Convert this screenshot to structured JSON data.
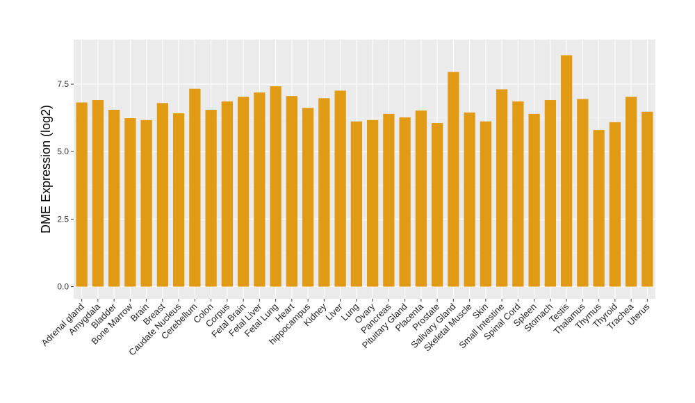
{
  "chart_data": {
    "type": "bar",
    "title": "",
    "xlabel": "",
    "ylabel": "DME Expression (log2)",
    "ylim": [
      -0.45,
      9.15
    ],
    "yticks": [
      0.0,
      2.5,
      5.0,
      7.5
    ],
    "ytick_labels": [
      "0.0",
      "2.5",
      "5.0",
      "7.5"
    ],
    "grid": true,
    "bar_color": "#E09A14",
    "panel_color": "#EBEBEB",
    "categories": [
      "Adrenal gland",
      "Amygdala",
      "Bladder",
      "Bone Marrow",
      "Brain",
      "Breast",
      "Caudate Nucleus",
      "Cerebellum",
      "Colon",
      "Corpus",
      "Fetal Brain",
      "Fetal Liver",
      "Fetal Lung",
      "Heart",
      "hippocampus",
      "Kidney",
      "Liver",
      "Lung",
      "Ovary",
      "Pancreas",
      "Pituitary Gland",
      "Placenta",
      "Prostate",
      "Salivary Gland",
      "Skeletal Muscle",
      "Skin",
      "Small Intestine",
      "Spinal Cord",
      "Spleen",
      "Stomach",
      "Testis",
      "Thalamus",
      "Thymus",
      "Thyroid",
      "Trachea",
      "Uterus"
    ],
    "values": [
      6.82,
      6.91,
      6.55,
      6.24,
      6.17,
      6.8,
      6.42,
      7.33,
      6.55,
      6.86,
      7.03,
      7.19,
      7.42,
      7.06,
      6.62,
      6.98,
      7.26,
      6.12,
      6.17,
      6.4,
      6.27,
      6.52,
      6.06,
      7.95,
      6.45,
      6.12,
      7.31,
      6.86,
      6.4,
      6.91,
      8.57,
      6.95,
      5.8,
      6.09,
      7.03,
      6.48
    ]
  }
}
